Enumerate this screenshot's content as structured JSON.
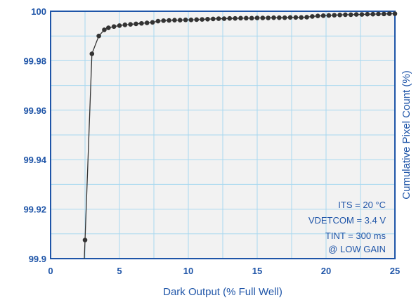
{
  "chart_data": {
    "type": "scatter",
    "xlabel": "Dark Output (% Full Well)",
    "ylabel": "Cumulative Pixel Count (%)",
    "xlim": [
      0,
      25
    ],
    "ylim": [
      99.9,
      100
    ],
    "xticks": [
      "0",
      "5",
      "10",
      "15",
      "20",
      "25"
    ],
    "yticks": [
      "100",
      "99.98",
      "99.96",
      "99.94",
      "99.92",
      "99.9"
    ],
    "grid": true,
    "legend": "none",
    "annotations": [
      "ITS = 20 °C",
      "VDETCOM = 3.4 V",
      "TINT = 300 ms",
      "@ LOW GAIN"
    ],
    "series": [
      {
        "x": [
          2.5,
          3.0,
          3.5,
          3.9,
          4.2,
          4.6,
          5.0,
          5.4,
          5.8,
          6.2,
          6.6,
          7.0,
          7.4,
          7.8,
          8.2,
          8.6,
          9.0,
          9.4,
          9.8,
          10.2,
          10.6,
          11.0,
          11.4,
          11.8,
          12.2,
          12.6,
          13.0,
          13.4,
          13.8,
          14.2,
          14.6,
          15.0,
          15.4,
          15.8,
          16.2,
          16.6,
          17.0,
          17.4,
          17.8,
          18.2,
          18.6,
          19.0,
          19.4,
          19.8,
          20.2,
          20.6,
          21.0,
          21.4,
          21.8,
          22.2,
          22.6,
          23.0,
          23.4,
          23.8,
          24.2,
          24.6,
          25.0
        ],
        "y": [
          99.9075,
          99.9828,
          99.99,
          99.9925,
          99.9933,
          99.9938,
          99.9942,
          99.9945,
          99.9947,
          99.9949,
          99.9951,
          99.9953,
          99.9955,
          99.996,
          99.9962,
          99.9963,
          99.9964,
          99.9964,
          99.9965,
          99.9965,
          99.9966,
          99.9967,
          99.9968,
          99.9969,
          99.997,
          99.997,
          99.9971,
          99.9971,
          99.9972,
          99.9972,
          99.9972,
          99.9973,
          99.9973,
          99.9973,
          99.9974,
          99.9974,
          99.9974,
          99.9975,
          99.9975,
          99.9975,
          99.9976,
          99.9979,
          99.9981,
          99.9982,
          99.9983,
          99.9984,
          99.9985,
          99.9986,
          99.9986,
          99.9987,
          99.9987,
          99.9988,
          99.9988,
          99.9989,
          99.9989,
          99.999,
          99.999
        ]
      }
    ],
    "colors": {
      "axis_text": "#1f55a8",
      "frame": "#1f55a8",
      "grid": "#a8d8f0",
      "points": "#333333",
      "plot_bg": "#f2f2f2"
    }
  }
}
